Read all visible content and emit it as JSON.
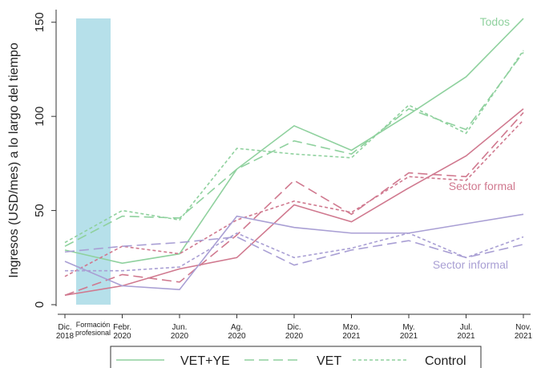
{
  "chart_data": {
    "type": "line",
    "y_label": "Ingresos (USD/mes) a lo largo del tiempo",
    "categories": [
      "Dic. 2018",
      "Febr. 2020",
      "Jun. 2020",
      "Ag. 2020",
      "Dic. 2020",
      "Mzo. 2021",
      "My. 2021",
      "Jul. 2021",
      "Nov. 2021"
    ],
    "shaded_band": {
      "label": "Formación profesional",
      "color": "#b6e0ea"
    },
    "ylim": [
      0,
      155
    ],
    "yticks": [
      0,
      50,
      100,
      150
    ],
    "legend": [
      {
        "name": "VET+YE",
        "dash": "solid"
      },
      {
        "name": "VET",
        "dash": "dashed"
      },
      {
        "name": "Control",
        "dash": "dotted"
      }
    ],
    "groups": [
      {
        "label": "Todos",
        "color": "#8fd19e",
        "series": [
          {
            "values": [
              29,
              22,
              27,
              72,
              95,
              82,
              101,
              121,
              152
            ]
          },
          {
            "values": [
              31,
              47,
              46,
              72,
              87,
              80,
              104,
              93,
              134
            ]
          },
          {
            "values": [
              33,
              50,
              45,
              83,
              80,
              78,
              106,
              91,
              135
            ]
          }
        ]
      },
      {
        "label": "Sector formal",
        "color": "#d0798f",
        "series": [
          {
            "values": [
              5,
              10,
              19,
              25,
              53,
              44,
              62,
              79,
              104
            ]
          },
          {
            "values": [
              5,
              16,
              12,
              37,
              66,
              48,
              70,
              68,
              102
            ]
          },
          {
            "values": [
              15,
              31,
              27,
              45,
              55,
              49,
              68,
              66,
              98
            ]
          }
        ]
      },
      {
        "label": "Sector informal",
        "color": "#a99fd4",
        "series": [
          {
            "values": [
              23,
              10,
              8,
              47,
              41,
              38,
              38,
              43,
              48
            ]
          },
          {
            "values": [
              28,
              31,
              33,
              36,
              21,
              29,
              34,
              25,
              32
            ]
          },
          {
            "values": [
              18,
              18,
              20,
              38,
              25,
              30,
              38,
              25,
              36
            ]
          }
        ]
      }
    ]
  }
}
